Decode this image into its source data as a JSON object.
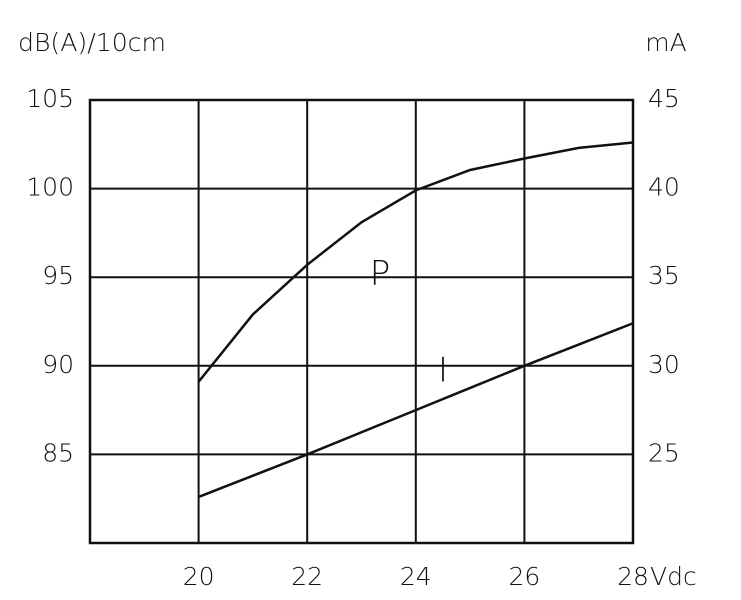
{
  "chart_data": {
    "type": "line",
    "y_label": "dB(A)/10cm",
    "y2_label": "mA",
    "x_label": "Vdc",
    "x": [
      20,
      21,
      22,
      23,
      24,
      25,
      26,
      27,
      28
    ],
    "series": [
      {
        "name": "P",
        "color": "#111111",
        "values": [
          89.1,
          92.9,
          95.7,
          98.1,
          99.9,
          101.05,
          101.7,
          102.3,
          102.6
        ]
      },
      {
        "name": "I",
        "color": "#111111",
        "axis": "y2",
        "values": [
          22.6,
          23.8,
          25.0,
          26.25,
          27.5,
          28.75,
          30.0,
          31.2,
          32.4
        ]
      }
    ],
    "xlim": [
      18,
      28
    ],
    "xticks": [
      20,
      22,
      24,
      26,
      28
    ],
    "ylim": [
      80,
      105
    ],
    "yticks": [
      85,
      90,
      95,
      100,
      105
    ],
    "y2lim": [
      20,
      45
    ],
    "y2ticks": [
      25,
      30,
      35,
      40,
      45
    ],
    "grid": true
  }
}
